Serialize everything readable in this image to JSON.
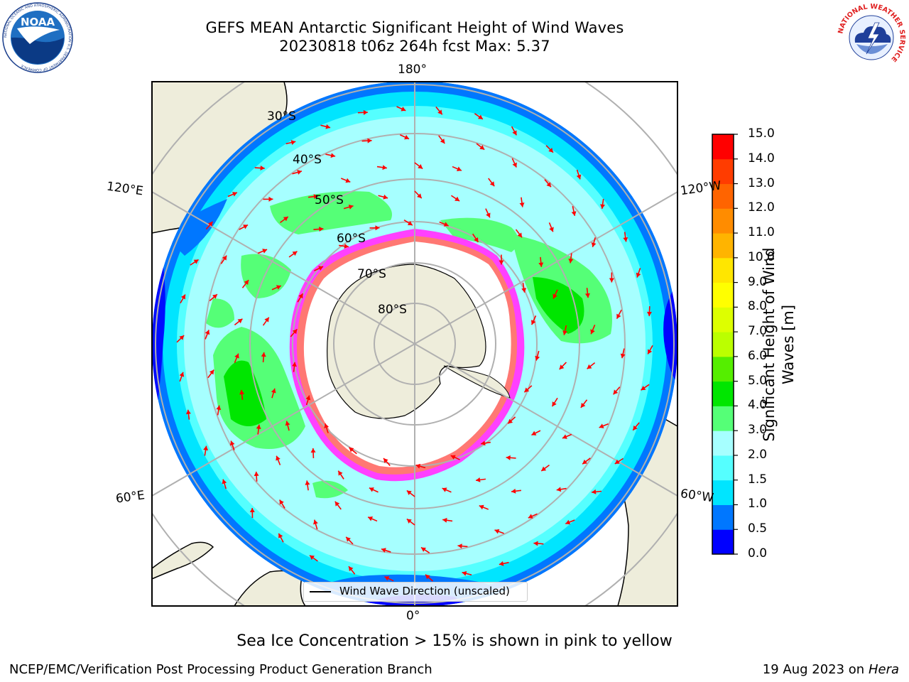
{
  "title_line1": "GEFS MEAN Antarctic Significant Height of Wind Waves",
  "title_line2": "20230818 t06z 264h fcst   Max: 5.37",
  "logos": {
    "noaa_text": "NOAA",
    "noaa_ring": "NATIONAL OCEANIC AND ATMOSPHERIC ADMINISTRATION  U.S. DEPARTMENT OF COMMERCE",
    "nws_ring": "NATIONAL WEATHER SERVICE"
  },
  "map": {
    "projection": "south-polar-stereographic",
    "longitude_labels": {
      "top": "180°",
      "bottom": "0°",
      "upper_left": "120°E",
      "lower_left": "60°E",
      "upper_right": "120°W",
      "lower_right": "60°W"
    },
    "latitude_labels": [
      "30°S",
      "40°S",
      "50°S",
      "60°S",
      "70°S",
      "80°S"
    ],
    "land_color": "#eeeddb",
    "ice_color": "#ffffff",
    "arrow_color": "#ff0000",
    "grid_color": "#b0b0b0"
  },
  "colorbar": {
    "label": "Significant Height of Wind Waves [m]",
    "ticks": [
      "0.0",
      "0.5",
      "1.0",
      "1.5",
      "2.0",
      "3.0",
      "4.0",
      "5.0",
      "6.0",
      "7.0",
      "8.0",
      "9.0",
      "10.0",
      "11.0",
      "12.0",
      "13.0",
      "14.0",
      "15.0"
    ],
    "colors": [
      "#0000ff",
      "#0077ff",
      "#00e5ff",
      "#55ffff",
      "#a6ffff",
      "#55ff77",
      "#00e600",
      "#55ee00",
      "#bbff00",
      "#ddff00",
      "#ffff00",
      "#ffe600",
      "#ffb400",
      "#ff8c00",
      "#ff6400",
      "#ff3c00",
      "#ff0000"
    ]
  },
  "legend": {
    "label": "Wind Wave Direction (unscaled)"
  },
  "caption": "Sea Ice Concentration > 15% is shown in pink to yellow",
  "footer_left": "NCEP/EMC/Verification Post Processing Product Generation Branch",
  "footer_right_date": "19 Aug 2023 on",
  "footer_right_machine": "Hera"
}
